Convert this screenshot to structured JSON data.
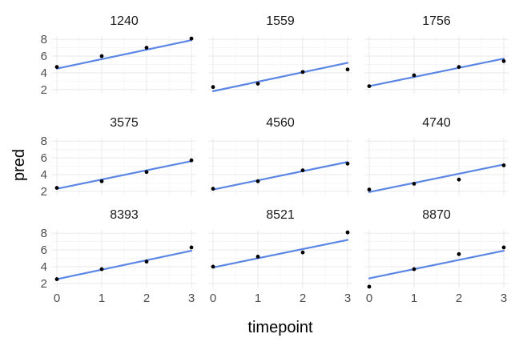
{
  "chart_data": {
    "type": "scatter",
    "layout": "facet_wrap 3x3",
    "xlabel": "timepoint",
    "ylabel": "pred",
    "xlim": [
      0,
      3
    ],
    "ylim": [
      2,
      8
    ],
    "x_ticks": [
      0,
      1,
      2,
      3
    ],
    "y_ticks": [
      2,
      4,
      6,
      8
    ],
    "grid": true,
    "line_color": "#5b86e5",
    "point_color": "#000000",
    "panels": [
      {
        "id": "1240",
        "points": [
          [
            0,
            4.7
          ],
          [
            1,
            6.0
          ],
          [
            2,
            7.0
          ],
          [
            3,
            8.1
          ]
        ],
        "fit": [
          4.5,
          7.9
        ]
      },
      {
        "id": "1559",
        "points": [
          [
            0,
            2.3
          ],
          [
            1,
            2.7
          ],
          [
            2,
            4.1
          ],
          [
            3,
            4.4
          ]
        ],
        "fit": [
          1.8,
          5.2
        ]
      },
      {
        "id": "1756",
        "points": [
          [
            0,
            2.4
          ],
          [
            1,
            3.7
          ],
          [
            2,
            4.7
          ],
          [
            3,
            5.4
          ]
        ],
        "fit": [
          2.4,
          5.7
        ]
      },
      {
        "id": "3575",
        "points": [
          [
            0,
            2.4
          ],
          [
            1,
            3.2
          ],
          [
            2,
            4.3
          ],
          [
            3,
            5.7
          ]
        ],
        "fit": [
          2.3,
          5.6
        ]
      },
      {
        "id": "4560",
        "points": [
          [
            0,
            2.3
          ],
          [
            1,
            3.2
          ],
          [
            2,
            4.5
          ],
          [
            3,
            5.3
          ]
        ],
        "fit": [
          2.2,
          5.5
        ]
      },
      {
        "id": "4740",
        "points": [
          [
            0,
            2.2
          ],
          [
            1,
            2.9
          ],
          [
            2,
            3.4
          ],
          [
            3,
            5.1
          ]
        ],
        "fit": [
          1.9,
          5.2
        ]
      },
      {
        "id": "8393",
        "points": [
          [
            0,
            2.5
          ],
          [
            1,
            3.7
          ],
          [
            2,
            4.6
          ],
          [
            3,
            6.3
          ]
        ],
        "fit": [
          2.5,
          5.9
        ]
      },
      {
        "id": "8521",
        "points": [
          [
            0,
            4.0
          ],
          [
            1,
            5.2
          ],
          [
            2,
            5.7
          ],
          [
            3,
            8.1
          ]
        ],
        "fit": [
          3.9,
          7.2
        ]
      },
      {
        "id": "8870",
        "points": [
          [
            0,
            1.6
          ],
          [
            1,
            3.7
          ],
          [
            2,
            5.5
          ],
          [
            3,
            6.3
          ]
        ],
        "fit": [
          2.6,
          5.9
        ]
      }
    ]
  }
}
